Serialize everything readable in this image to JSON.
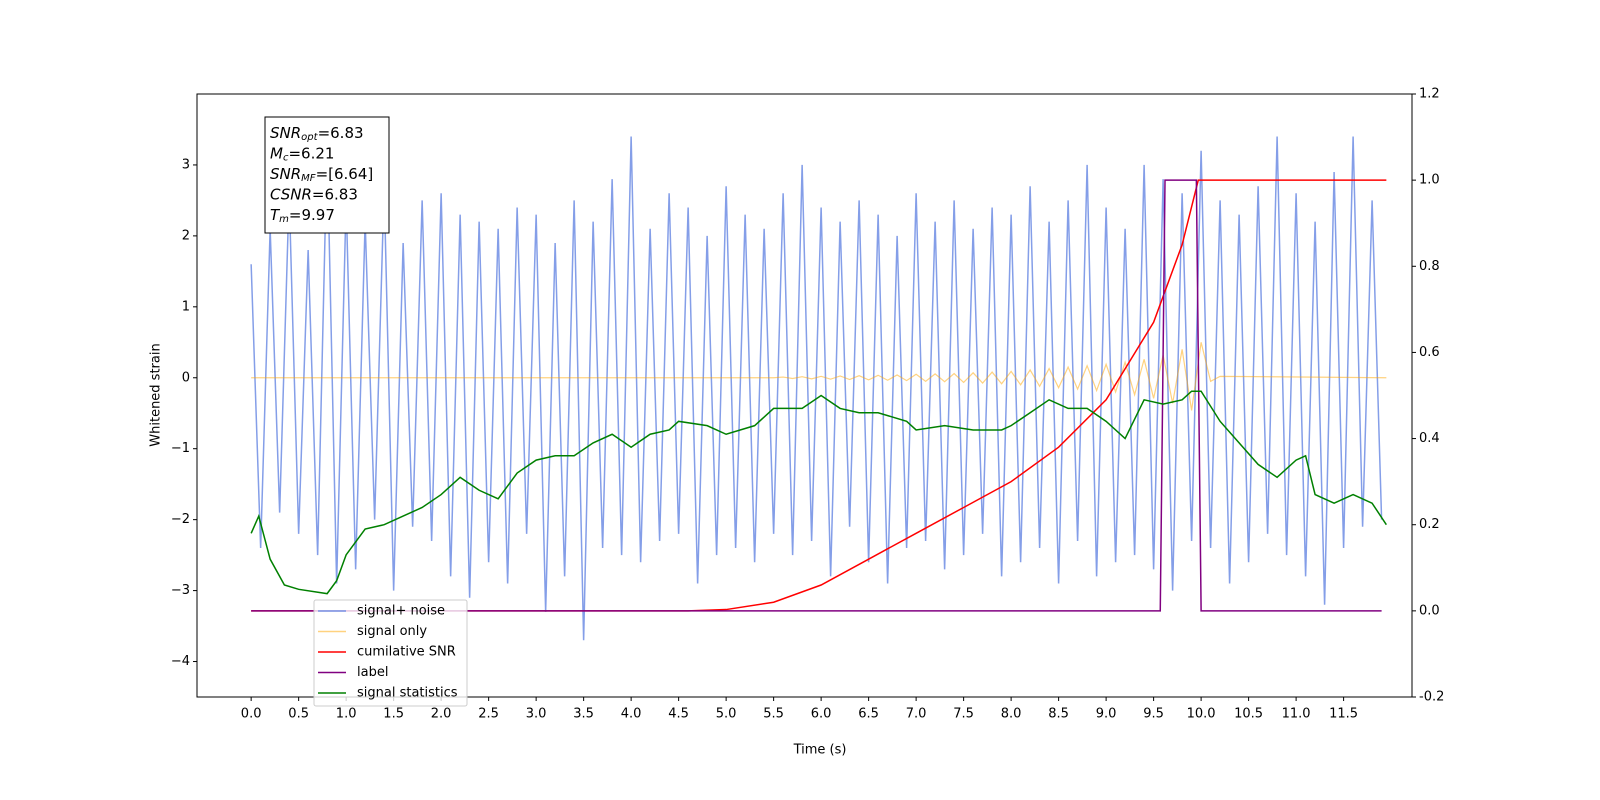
{
  "chart_data": {
    "type": "line",
    "x_label": "Time (s)",
    "y_label": "Whitened strain",
    "xlim": [
      -0.57,
      12.22
    ],
    "ylim": [
      -4.5,
      4.0
    ],
    "y2lim": [
      -0.2,
      1.2
    ],
    "xticks": [
      {
        "value": 0,
        "label": "0.0"
      },
      0.5,
      {
        "value": 1,
        "label": "1.0"
      },
      1.5,
      {
        "value": 2,
        "label": "2.0"
      },
      2.5,
      {
        "value": 3,
        "label": "3.0"
      },
      3.5,
      {
        "value": 4,
        "label": "4.0"
      },
      4.5,
      {
        "value": 5,
        "label": "5.0"
      },
      5.5,
      {
        "value": 6,
        "label": "6.0"
      },
      6.5,
      {
        "value": 7,
        "label": "7.0"
      },
      7.5,
      {
        "value": 8,
        "label": "8.0"
      },
      8.5,
      {
        "value": 9,
        "label": "9.0"
      },
      9.5,
      {
        "value": 10,
        "label": "10.0"
      },
      10.5,
      {
        "value": 11,
        "label": "11.0"
      },
      11.5
    ],
    "yticks": [
      {
        "value": -4,
        "label": "−4"
      },
      {
        "value": -3,
        "label": "−3"
      },
      {
        "value": -2,
        "label": "−2"
      },
      {
        "value": -1,
        "label": "−1"
      },
      0,
      1,
      2,
      3
    ],
    "y2ticks": [
      -0.2,
      {
        "value": 0,
        "label": "0.0"
      },
      0.2,
      0.4,
      0.6,
      0.8,
      {
        "value": 1,
        "label": "1.0"
      },
      1.2
    ],
    "legend": "lower left",
    "annotation": [
      {
        "symbol": "SNR",
        "subscript": "opt",
        "text": "=6.83"
      },
      {
        "symbol": "M",
        "subscript": "c",
        "text": "=6.21"
      },
      {
        "symbol": "SNR",
        "subscript": "MF",
        "text": "=[6.64]"
      },
      {
        "symbol": "CSNR",
        "text": "=6.83"
      },
      {
        "symbol": "T",
        "subscript": "m",
        "text": "=9.97"
      }
    ],
    "series": [
      {
        "name": "signal+ noise",
        "color": "#7793e6",
        "axis": "y",
        "x": [
          0,
          0.1,
          0.2,
          0.3,
          0.4,
          0.5,
          0.6,
          0.7,
          0.8,
          0.9,
          1,
          1.1,
          1.2,
          1.3,
          1.4,
          1.5,
          1.6,
          1.7,
          1.8,
          1.9,
          2,
          2.1,
          2.2,
          2.3,
          2.4,
          2.5,
          2.6,
          2.7,
          2.8,
          2.9,
          3,
          3.1,
          3.2,
          3.3,
          3.4,
          3.5,
          3.6,
          3.7,
          3.8,
          3.9,
          4,
          4.1,
          4.2,
          4.3,
          4.4,
          4.5,
          4.6,
          4.7,
          4.8,
          4.9,
          5,
          5.1,
          5.2,
          5.3,
          5.4,
          5.5,
          5.6,
          5.7,
          5.8,
          5.9,
          6,
          6.1,
          6.2,
          6.3,
          6.4,
          6.5,
          6.6,
          6.7,
          6.8,
          6.9,
          7,
          7.1,
          7.2,
          7.3,
          7.4,
          7.5,
          7.6,
          7.7,
          7.8,
          7.9,
          8,
          8.1,
          8.2,
          8.3,
          8.4,
          8.5,
          8.6,
          8.7,
          8.8,
          8.9,
          9,
          9.1,
          9.2,
          9.3,
          9.4,
          9.5,
          9.6,
          9.7,
          9.8,
          9.9,
          10,
          10.1,
          10.2,
          10.3,
          10.4,
          10.5,
          10.6,
          10.7,
          10.8,
          10.9,
          11,
          11.1,
          11.2,
          11.3,
          11.4,
          11.5,
          11.6,
          11.7,
          11.8,
          11.9
        ],
        "values": [
          1.6,
          -2.4,
          2.1,
          -1.9,
          2.6,
          -2.2,
          1.8,
          -2.5,
          3.3,
          -2.9,
          2.5,
          -2.7,
          2.2,
          -2.0,
          2.7,
          -3.0,
          1.9,
          -2.1,
          2.5,
          -2.3,
          2.6,
          -2.8,
          2.3,
          -3.1,
          2.2,
          -2.6,
          2.1,
          -2.9,
          2.4,
          -2.2,
          2.3,
          -3.3,
          1.9,
          -2.8,
          2.5,
          -3.7,
          2.2,
          -2.4,
          2.8,
          -2.5,
          3.4,
          -2.6,
          2.1,
          -2.3,
          2.6,
          -2.2,
          2.4,
          -2.9,
          2.0,
          -2.5,
          2.7,
          -2.4,
          2.3,
          -2.6,
          2.1,
          -2.2,
          2.6,
          -2.5,
          3.0,
          -2.3,
          2.4,
          -2.8,
          2.2,
          -2.1,
          2.5,
          -2.6,
          2.3,
          -2.9,
          2.0,
          -2.4,
          2.6,
          -2.3,
          2.2,
          -2.7,
          2.5,
          -2.5,
          2.1,
          -2.2,
          2.4,
          -2.8,
          2.3,
          -2.6,
          2.7,
          -2.4,
          2.2,
          -2.9,
          2.5,
          -2.3,
          3.0,
          -2.8,
          2.4,
          -2.6,
          2.1,
          -2.5,
          3.0,
          -2.7,
          2.8,
          -3.0,
          2.6,
          -2.3,
          3.2,
          -2.4,
          2.5,
          -2.9,
          2.3,
          -2.6,
          2.7,
          -2.2,
          3.4,
          -2.5,
          2.6,
          -2.8,
          2.2,
          -3.2,
          2.9,
          -2.4,
          3.4,
          -2.1,
          2.5,
          -2.0
        ]
      },
      {
        "name": "signal only",
        "color": "#ffa500",
        "axis": "y",
        "x": [
          0,
          5.5,
          5.6,
          5.7,
          5.8,
          5.9,
          6,
          6.1,
          6.2,
          6.3,
          6.4,
          6.5,
          6.6,
          6.7,
          6.8,
          6.9,
          7,
          7.1,
          7.2,
          7.3,
          7.4,
          7.5,
          7.6,
          7.7,
          7.8,
          7.9,
          8,
          8.1,
          8.2,
          8.3,
          8.4,
          8.5,
          8.6,
          8.7,
          8.8,
          8.9,
          9,
          9.1,
          9.2,
          9.3,
          9.4,
          9.5,
          9.6,
          9.7,
          9.8,
          9.9,
          10,
          10.1,
          10.2,
          11.95
        ],
        "values": [
          0,
          0,
          0.01,
          -0.01,
          0.015,
          -0.015,
          0.02,
          -0.02,
          0.025,
          -0.025,
          0.03,
          -0.03,
          0.035,
          -0.035,
          0.04,
          -0.04,
          0.05,
          -0.05,
          0.055,
          -0.055,
          0.06,
          -0.065,
          0.07,
          -0.075,
          0.08,
          -0.085,
          0.09,
          -0.1,
          0.11,
          -0.12,
          0.13,
          -0.14,
          0.15,
          -0.16,
          0.17,
          -0.18,
          0.19,
          -0.2,
          0.22,
          -0.24,
          0.26,
          -0.29,
          0.32,
          -0.36,
          0.4,
          -0.46,
          0.5,
          -0.05,
          0.02,
          0
        ]
      },
      {
        "name": "cumilative SNR",
        "color": "#ff0000",
        "axis": "y2",
        "x": [
          0,
          4.6,
          5,
          5.5,
          6,
          6.5,
          7,
          7.5,
          8,
          8.5,
          9,
          9.5,
          9.8,
          9.97,
          10,
          11.95
        ],
        "values": [
          0,
          0,
          0.003,
          0.02,
          0.06,
          0.12,
          0.18,
          0.24,
          0.3,
          0.38,
          0.49,
          0.67,
          0.85,
          1,
          1,
          1
        ]
      },
      {
        "name": "label",
        "color": "#800080",
        "axis": "y2",
        "x": [
          0,
          9.57,
          9.62,
          9.95,
          10,
          11.9
        ],
        "values": [
          0,
          0,
          1,
          1,
          0,
          0
        ]
      },
      {
        "name": "signal statistics",
        "color": "#008000",
        "axis": "y2",
        "x": [
          0,
          0.08,
          0.2,
          0.35,
          0.5,
          0.8,
          0.9,
          1,
          1.2,
          1.4,
          1.6,
          1.8,
          2,
          2.2,
          2.4,
          2.6,
          2.8,
          3,
          3.2,
          3.4,
          3.6,
          3.8,
          4,
          4.2,
          4.4,
          4.5,
          4.8,
          5,
          5.3,
          5.5,
          5.8,
          6,
          6.2,
          6.4,
          6.6,
          6.9,
          7,
          7.3,
          7.6,
          7.9,
          8,
          8.2,
          8.4,
          8.6,
          8.8,
          9,
          9.2,
          9.4,
          9.6,
          9.8,
          9.9,
          10,
          10.2,
          10.4,
          10.6,
          10.8,
          11,
          11.1,
          11.2,
          11.4,
          11.6,
          11.8,
          11.95
        ],
        "values": [
          0.18,
          0.22,
          0.12,
          0.06,
          0.05,
          0.04,
          0.07,
          0.13,
          0.19,
          0.2,
          0.22,
          0.24,
          0.27,
          0.31,
          0.28,
          0.26,
          0.32,
          0.35,
          0.36,
          0.36,
          0.39,
          0.41,
          0.38,
          0.41,
          0.42,
          0.44,
          0.43,
          0.41,
          0.43,
          0.47,
          0.47,
          0.5,
          0.47,
          0.46,
          0.46,
          0.44,
          0.42,
          0.43,
          0.42,
          0.42,
          0.43,
          0.46,
          0.49,
          0.47,
          0.47,
          0.44,
          0.4,
          0.49,
          0.48,
          0.49,
          0.51,
          0.51,
          0.44,
          0.39,
          0.34,
          0.31,
          0.35,
          0.36,
          0.27,
          0.25,
          0.27,
          0.25,
          0.2
        ]
      }
    ]
  }
}
